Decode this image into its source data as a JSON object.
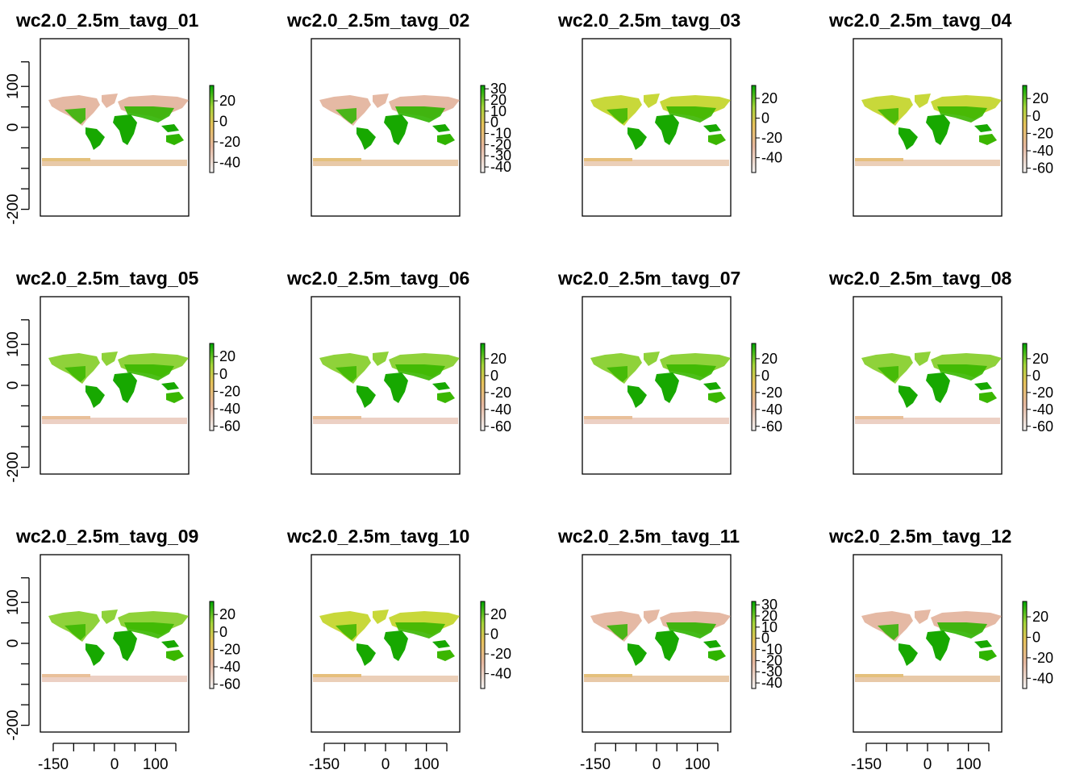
{
  "chart_data": {
    "type": "heatmap",
    "layout": "3x4",
    "x_axis": {
      "ticks": [
        -150,
        0,
        100
      ]
    },
    "y_axis": {
      "ticks": [
        100,
        0,
        -200
      ]
    },
    "colors": {
      "low": "#f2f2f2",
      "mid_low": "#e8b9a0",
      "mid": "#e8c35a",
      "mid_high": "#a6d63a",
      "high": "#00a600"
    },
    "panels": [
      {
        "title": "wc2.0_2.5m_tavg_01",
        "legend_ticks": [
          "20",
          "0",
          "-20",
          "-40"
        ],
        "legend_range": [
          -50,
          35
        ],
        "land_scheme": "winter_nh"
      },
      {
        "title": "wc2.0_2.5m_tavg_02",
        "legend_ticks": [
          "30",
          "20",
          "10",
          "0",
          "-10",
          "-20",
          "-30",
          "-40"
        ],
        "legend_range": [
          -45,
          33
        ],
        "land_scheme": "winter_nh"
      },
      {
        "title": "wc2.0_2.5m_tavg_03",
        "legend_ticks": [
          "20",
          "0",
          "-20",
          "-40"
        ],
        "legend_range": [
          -55,
          33
        ],
        "land_scheme": "spring"
      },
      {
        "title": "wc2.0_2.5m_tavg_04",
        "legend_ticks": [
          "20",
          "0",
          "-20",
          "-40",
          "-60"
        ],
        "legend_range": [
          -65,
          35
        ],
        "land_scheme": "spring"
      },
      {
        "title": "wc2.0_2.5m_tavg_05",
        "legend_ticks": [
          "20",
          "0",
          "-20",
          "-40",
          "-60"
        ],
        "legend_range": [
          -65,
          35
        ],
        "land_scheme": "summer"
      },
      {
        "title": "wc2.0_2.5m_tavg_06",
        "legend_ticks": [
          "20",
          "0",
          "-20",
          "-40",
          "-60"
        ],
        "legend_range": [
          -65,
          38
        ],
        "land_scheme": "summer"
      },
      {
        "title": "wc2.0_2.5m_tavg_07",
        "legend_ticks": [
          "20",
          "0",
          "-20",
          "-40",
          "-60"
        ],
        "legend_range": [
          -65,
          38
        ],
        "land_scheme": "summer"
      },
      {
        "title": "wc2.0_2.5m_tavg_08",
        "legend_ticks": [
          "20",
          "0",
          "-20",
          "-40",
          "-60"
        ],
        "legend_range": [
          -65,
          38
        ],
        "land_scheme": "summer"
      },
      {
        "title": "wc2.0_2.5m_tavg_09",
        "legend_ticks": [
          "20",
          "0",
          "-20",
          "-40",
          "-60"
        ],
        "legend_range": [
          -65,
          35
        ],
        "land_scheme": "summer"
      },
      {
        "title": "wc2.0_2.5m_tavg_10",
        "legend_ticks": [
          "20",
          "0",
          "-20",
          "-40"
        ],
        "legend_range": [
          -55,
          33
        ],
        "land_scheme": "spring"
      },
      {
        "title": "wc2.0_2.5m_tavg_11",
        "legend_ticks": [
          "30",
          "20",
          "10",
          "0",
          "-10",
          "-20",
          "-30",
          "-40"
        ],
        "legend_range": [
          -45,
          33
        ],
        "land_scheme": "winter_nh"
      },
      {
        "title": "wc2.0_2.5m_tavg_12",
        "legend_ticks": [
          "20",
          "0",
          "-20",
          "-40"
        ],
        "legend_range": [
          -50,
          35
        ],
        "land_scheme": "winter_nh"
      }
    ]
  }
}
